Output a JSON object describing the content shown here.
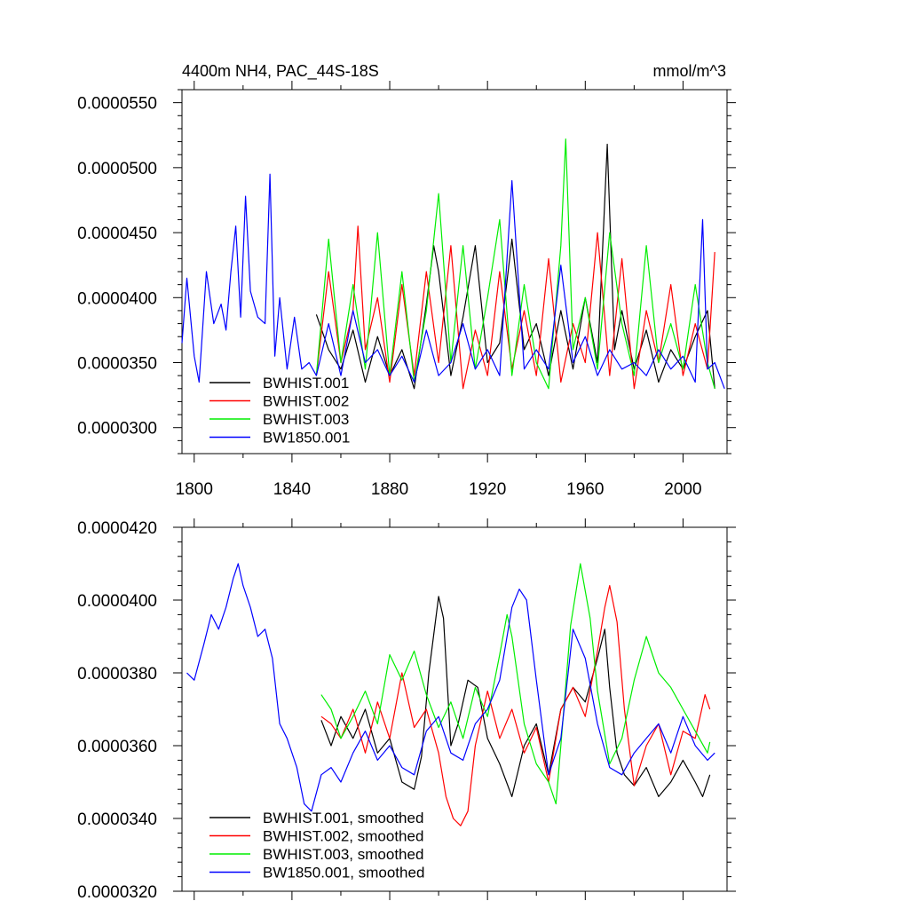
{
  "chart_data": [
    {
      "type": "line",
      "title": "4400m NH4, PAC_44S-18S",
      "units": "mmol/m^3",
      "xlim": [
        1795,
        2018
      ],
      "ylim": [
        2.8e-05,
        5.6e-05
      ],
      "yticks": [
        "0.0000300",
        "0.0000350",
        "0.0000400",
        "0.0000450",
        "0.0000500",
        "0.0000550"
      ],
      "xticks": [
        "1800",
        "1840",
        "1880",
        "1920",
        "1960",
        "2000"
      ],
      "legend_position": "bottom-left",
      "series": [
        {
          "name": "BWHIST.001",
          "color": "#000000",
          "x": [
            1850,
            1855,
            1860,
            1865,
            1870,
            1875,
            1880,
            1885,
            1890,
            1895,
            1898,
            1900,
            1905,
            1910,
            1915,
            1920,
            1925,
            1930,
            1935,
            1940,
            1945,
            1950,
            1955,
            1960,
            1965,
            1969,
            1972,
            1975,
            1980,
            1985,
            1990,
            1995,
            2000,
            2005,
            2010,
            2013
          ],
          "y": [
            3.87e-05,
            3.6e-05,
            3.45e-05,
            3.75e-05,
            3.35e-05,
            3.7e-05,
            3.4e-05,
            3.6e-05,
            3.3e-05,
            3.95e-05,
            4.4e-05,
            4.2e-05,
            3.4e-05,
            3.85e-05,
            4.4e-05,
            3.5e-05,
            3.65e-05,
            4.45e-05,
            3.6e-05,
            3.8e-05,
            3.4e-05,
            3.9e-05,
            3.45e-05,
            4e-05,
            3.5e-05,
            5.18e-05,
            3.6e-05,
            3.9e-05,
            3.45e-05,
            3.75e-05,
            3.35e-05,
            3.6e-05,
            3.45e-05,
            3.7e-05,
            3.9e-05,
            3.3e-05
          ]
        },
        {
          "name": "BWHIST.002",
          "color": "#ff0000",
          "x": [
            1850,
            1855,
            1860,
            1865,
            1867,
            1870,
            1875,
            1880,
            1885,
            1890,
            1895,
            1900,
            1905,
            1910,
            1915,
            1920,
            1925,
            1930,
            1935,
            1940,
            1945,
            1950,
            1955,
            1960,
            1965,
            1970,
            1975,
            1980,
            1985,
            1990,
            1995,
            2000,
            2005,
            2010,
            2013
          ],
          "y": [
            3.4e-05,
            4.2e-05,
            3.5e-05,
            3.9e-05,
            4.55e-05,
            3.6e-05,
            4e-05,
            3.35e-05,
            4.1e-05,
            3.4e-05,
            4.2e-05,
            3.5e-05,
            4.4e-05,
            3.3e-05,
            3.75e-05,
            3.4e-05,
            4.2e-05,
            3.45e-05,
            3.9e-05,
            3.4e-05,
            4.3e-05,
            3.35e-05,
            3.8e-05,
            3.5e-05,
            4.5e-05,
            3.4e-05,
            4.3e-05,
            3.3e-05,
            3.9e-05,
            3.5e-05,
            4.1e-05,
            3.4e-05,
            3.8e-05,
            3.45e-05,
            4.35e-05
          ]
        },
        {
          "name": "BWHIST.003",
          "color": "#00ee00",
          "x": [
            1850,
            1855,
            1860,
            1865,
            1870,
            1875,
            1880,
            1885,
            1890,
            1895,
            1900,
            1905,
            1910,
            1915,
            1920,
            1925,
            1930,
            1935,
            1940,
            1945,
            1950,
            1952,
            1955,
            1960,
            1965,
            1970,
            1975,
            1980,
            1985,
            1990,
            1995,
            2000,
            2005,
            2010,
            2013
          ],
          "y": [
            3.4e-05,
            4.45e-05,
            3.5e-05,
            4.1e-05,
            3.45e-05,
            4.5e-05,
            3.4e-05,
            4.2e-05,
            3.35e-05,
            3.9e-05,
            4.8e-05,
            3.5e-05,
            4.4e-05,
            3.45e-05,
            4e-05,
            4.6e-05,
            3.4e-05,
            4.1e-05,
            3.5e-05,
            3.3e-05,
            4.4e-05,
            5.22e-05,
            3.6e-05,
            4e-05,
            3.45e-05,
            4.5e-05,
            3.8e-05,
            3.4e-05,
            4.4e-05,
            3.5e-05,
            3.8e-05,
            3.45e-05,
            4.1e-05,
            3.5e-05,
            3.3e-05
          ]
        },
        {
          "name": "BW1850.001",
          "color": "#0000ff",
          "x": [
            1795,
            1797,
            1800,
            1802,
            1805,
            1808,
            1811,
            1813,
            1815,
            1817,
            1819,
            1821,
            1823,
            1826,
            1829,
            1831,
            1833,
            1835,
            1838,
            1841,
            1844,
            1847,
            1850,
            1855,
            1860,
            1865,
            1870,
            1875,
            1880,
            1885,
            1890,
            1895,
            1900,
            1905,
            1910,
            1915,
            1920,
            1925,
            1930,
            1935,
            1940,
            1945,
            1950,
            1955,
            1960,
            1965,
            1970,
            1975,
            1980,
            1985,
            1990,
            1995,
            2000,
            2005,
            2008,
            2010,
            2013,
            2017
          ],
          "y": [
            3.65e-05,
            4.15e-05,
            3.55e-05,
            3.35e-05,
            4.2e-05,
            3.8e-05,
            3.95e-05,
            3.75e-05,
            4.2e-05,
            4.55e-05,
            3.85e-05,
            4.78e-05,
            4.05e-05,
            3.85e-05,
            3.8e-05,
            4.95e-05,
            3.55e-05,
            4e-05,
            3.45e-05,
            3.85e-05,
            3.45e-05,
            3.5e-05,
            3.4e-05,
            3.8e-05,
            3.4e-05,
            3.9e-05,
            3.5e-05,
            3.6e-05,
            3.4e-05,
            3.55e-05,
            3.35e-05,
            3.75e-05,
            3.4e-05,
            3.5e-05,
            3.8e-05,
            3.45e-05,
            3.6e-05,
            3.4e-05,
            4.9e-05,
            3.45e-05,
            3.6e-05,
            3.45e-05,
            4.25e-05,
            3.5e-05,
            3.7e-05,
            3.4e-05,
            3.6e-05,
            3.45e-05,
            3.5e-05,
            3.4e-05,
            3.6e-05,
            3.45e-05,
            3.55e-05,
            3.35e-05,
            4.6e-05,
            3.45e-05,
            3.5e-05,
            3.3e-05
          ]
        }
      ]
    },
    {
      "type": "line",
      "xlim": [
        1795,
        2018
      ],
      "ylim": [
        3.2e-05,
        4.2e-05
      ],
      "yticks": [
        "0.0000320",
        "0.0000340",
        "0.0000360",
        "0.0000380",
        "0.0000400",
        "0.0000420"
      ],
      "legend_position": "bottom-left",
      "series": [
        {
          "name": "BWHIST.001, smoothed",
          "color": "#000000",
          "x": [
            1852,
            1856,
            1860,
            1865,
            1870,
            1875,
            1880,
            1885,
            1890,
            1893,
            1896,
            1900,
            1902,
            1905,
            1908,
            1912,
            1916,
            1920,
            1925,
            1930,
            1935,
            1940,
            1945,
            1950,
            1955,
            1960,
            1965,
            1968,
            1970,
            1973,
            1976,
            1980,
            1985,
            1990,
            1995,
            2000,
            2005,
            2008,
            2011
          ],
          "y": [
            3.67e-05,
            3.6e-05,
            3.68e-05,
            3.62e-05,
            3.7e-05,
            3.58e-05,
            3.62e-05,
            3.5e-05,
            3.48e-05,
            3.57e-05,
            3.8e-05,
            4.01e-05,
            3.95e-05,
            3.6e-05,
            3.66e-05,
            3.78e-05,
            3.76e-05,
            3.62e-05,
            3.55e-05,
            3.46e-05,
            3.6e-05,
            3.66e-05,
            3.52e-05,
            3.7e-05,
            3.76e-05,
            3.72e-05,
            3.84e-05,
            3.92e-05,
            3.76e-05,
            3.58e-05,
            3.52e-05,
            3.49e-05,
            3.54e-05,
            3.46e-05,
            3.5e-05,
            3.56e-05,
            3.5e-05,
            3.46e-05,
            3.52e-05
          ]
        },
        {
          "name": "BWHIST.002, smoothed",
          "color": "#ff0000",
          "x": [
            1852,
            1856,
            1860,
            1865,
            1870,
            1875,
            1880,
            1885,
            1890,
            1895,
            1900,
            1903,
            1906,
            1909,
            1912,
            1915,
            1920,
            1925,
            1930,
            1935,
            1940,
            1945,
            1950,
            1955,
            1960,
            1965,
            1968,
            1970,
            1973,
            1976,
            1980,
            1985,
            1990,
            1995,
            2000,
            2005,
            2009,
            2011
          ],
          "y": [
            3.68e-05,
            3.66e-05,
            3.62e-05,
            3.7e-05,
            3.58e-05,
            3.72e-05,
            3.62e-05,
            3.8e-05,
            3.65e-05,
            3.7e-05,
            3.58e-05,
            3.46e-05,
            3.4e-05,
            3.38e-05,
            3.42e-05,
            3.6e-05,
            3.75e-05,
            3.62e-05,
            3.7e-05,
            3.58e-05,
            3.65e-05,
            3.5e-05,
            3.7e-05,
            3.76e-05,
            3.68e-05,
            3.86e-05,
            3.98e-05,
            4.04e-05,
            3.94e-05,
            3.7e-05,
            3.49e-05,
            3.6e-05,
            3.66e-05,
            3.52e-05,
            3.64e-05,
            3.62e-05,
            3.74e-05,
            3.7e-05
          ]
        },
        {
          "name": "BWHIST.003, smoothed",
          "color": "#00ee00",
          "x": [
            1852,
            1856,
            1860,
            1865,
            1870,
            1875,
            1880,
            1885,
            1890,
            1895,
            1900,
            1905,
            1910,
            1915,
            1920,
            1925,
            1928,
            1930,
            1935,
            1940,
            1945,
            1948,
            1950,
            1954,
            1958,
            1962,
            1965,
            1970,
            1975,
            1980,
            1985,
            1990,
            1995,
            2000,
            2005,
            2010,
            2011
          ],
          "y": [
            3.74e-05,
            3.7e-05,
            3.62e-05,
            3.68e-05,
            3.75e-05,
            3.66e-05,
            3.85e-05,
            3.78e-05,
            3.86e-05,
            3.74e-05,
            3.65e-05,
            3.72e-05,
            3.62e-05,
            3.76e-05,
            3.68e-05,
            3.85e-05,
            3.96e-05,
            3.9e-05,
            3.66e-05,
            3.55e-05,
            3.5e-05,
            3.44e-05,
            3.6e-05,
            3.93e-05,
            4.1e-05,
            3.95e-05,
            3.75e-05,
            3.55e-05,
            3.62e-05,
            3.78e-05,
            3.9e-05,
            3.8e-05,
            3.76e-05,
            3.7e-05,
            3.64e-05,
            3.58e-05,
            3.61e-05
          ]
        },
        {
          "name": "BW1850.001, smoothed",
          "color": "#0000ff",
          "x": [
            1797,
            1800,
            1804,
            1807,
            1810,
            1813,
            1816,
            1818,
            1820,
            1823,
            1826,
            1829,
            1832,
            1835,
            1838,
            1842,
            1845,
            1848,
            1852,
            1856,
            1860,
            1865,
            1870,
            1875,
            1880,
            1885,
            1890,
            1895,
            1900,
            1905,
            1910,
            1915,
            1920,
            1925,
            1930,
            1933,
            1936,
            1940,
            1945,
            1950,
            1955,
            1960,
            1965,
            1970,
            1975,
            1980,
            1985,
            1990,
            1995,
            2000,
            2005,
            2010,
            2013
          ],
          "y": [
            3.8e-05,
            3.78e-05,
            3.88e-05,
            3.96e-05,
            3.92e-05,
            3.98e-05,
            4.06e-05,
            4.1e-05,
            4.04e-05,
            3.98e-05,
            3.9e-05,
            3.92e-05,
            3.84e-05,
            3.66e-05,
            3.62e-05,
            3.54e-05,
            3.44e-05,
            3.42e-05,
            3.52e-05,
            3.54e-05,
            3.5e-05,
            3.58e-05,
            3.64e-05,
            3.56e-05,
            3.6e-05,
            3.54e-05,
            3.52e-05,
            3.64e-05,
            3.68e-05,
            3.58e-05,
            3.56e-05,
            3.66e-05,
            3.7e-05,
            3.78e-05,
            3.98e-05,
            4.03e-05,
            4e-05,
            3.78e-05,
            3.52e-05,
            3.62e-05,
            3.92e-05,
            3.84e-05,
            3.66e-05,
            3.54e-05,
            3.52e-05,
            3.58e-05,
            3.62e-05,
            3.66e-05,
            3.58e-05,
            3.68e-05,
            3.6e-05,
            3.56e-05,
            3.58e-05
          ]
        }
      ]
    }
  ]
}
